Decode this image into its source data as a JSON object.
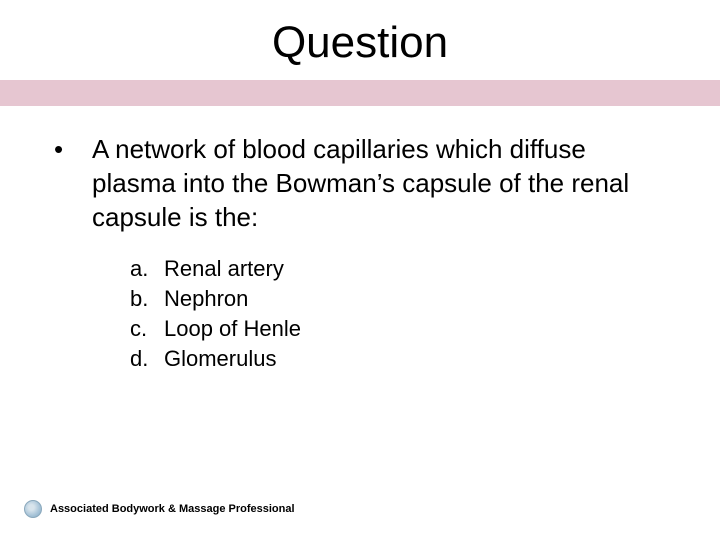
{
  "slide": {
    "title": "Question",
    "accent_color": "#e6c6d1",
    "background_color": "#ffffff",
    "title_fontsize": 44,
    "body_fontsize": 26,
    "option_fontsize": 22
  },
  "question": {
    "bullet": "•",
    "text": "A network of blood capillaries which diffuse plasma into the Bowman’s capsule of the renal capsule is the:"
  },
  "options": [
    {
      "label": "a.",
      "text": "Renal artery"
    },
    {
      "label": "b.",
      "text": "Nephron"
    },
    {
      "label": "c.",
      "text": "Loop of Henle"
    },
    {
      "label": "d.",
      "text": "Glomerulus"
    }
  ],
  "footer": {
    "text": "Associated Bodywork & Massage Professional",
    "fontsize": 11
  }
}
